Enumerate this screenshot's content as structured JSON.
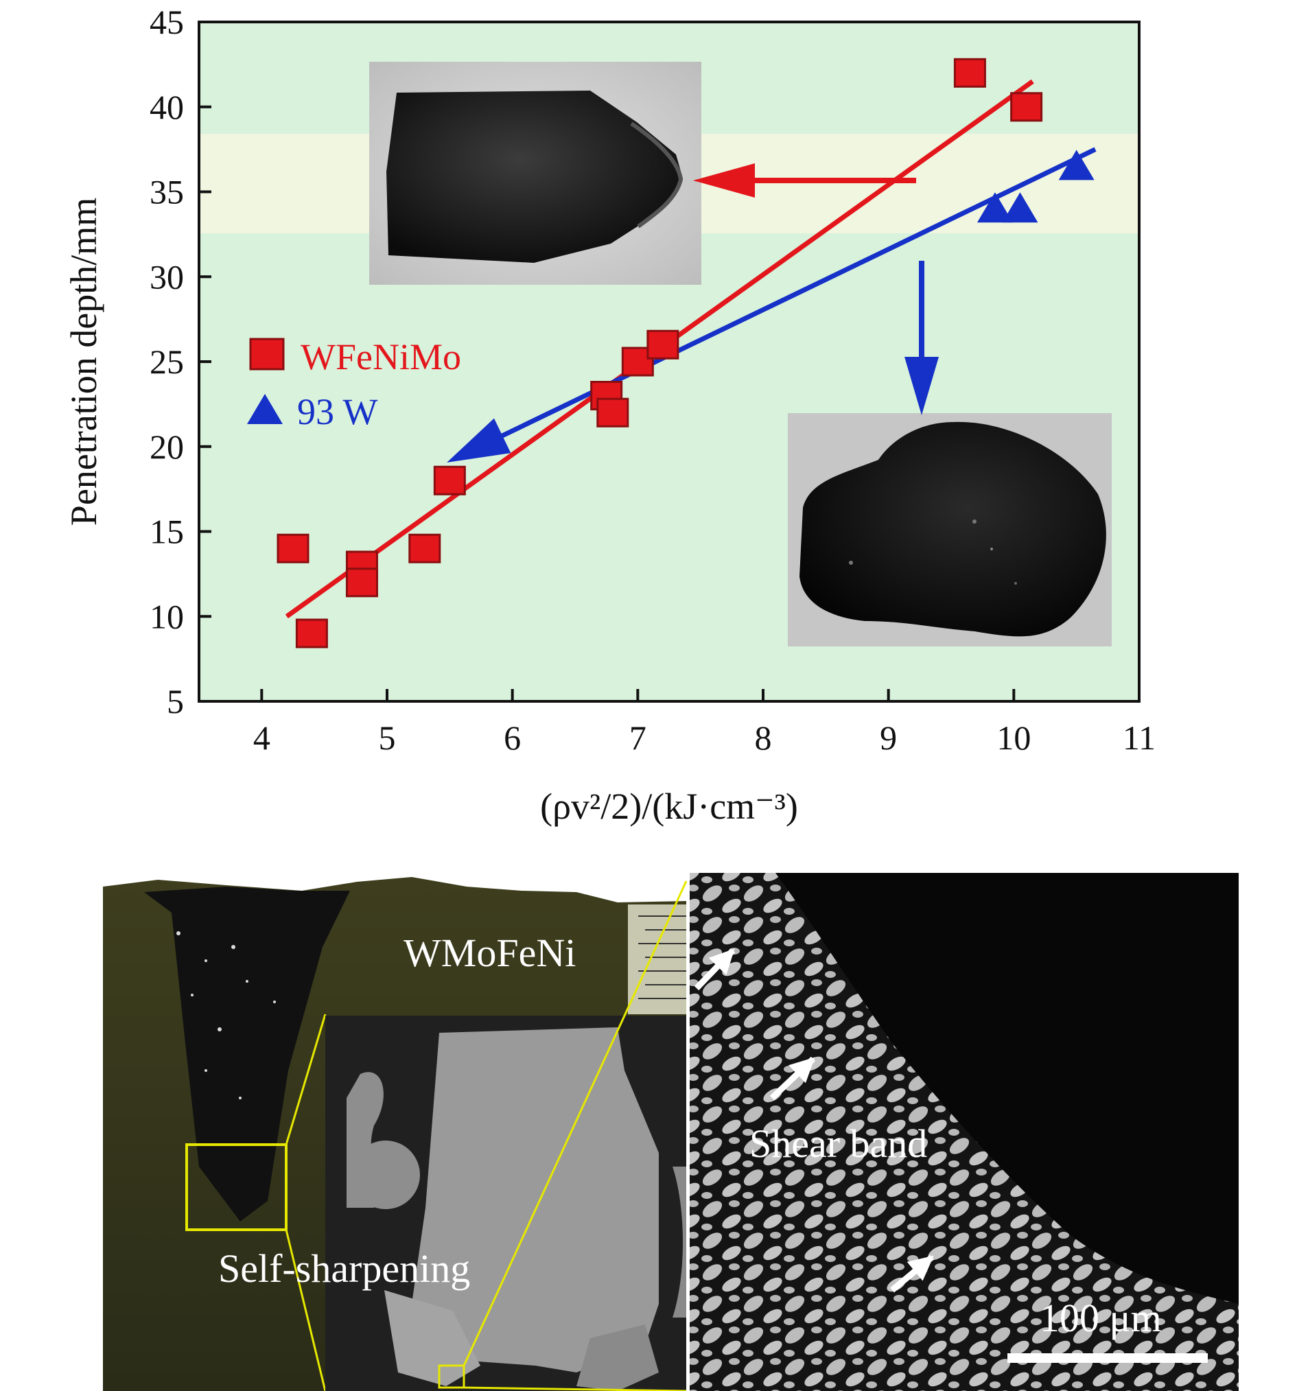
{
  "chart_data": {
    "type": "scatter",
    "title": "",
    "xlabel": "(ρv²/2)/(kJ·cm⁻³)",
    "ylabel": "Penetration depth/mm",
    "xlim": [
      3.5,
      11
    ],
    "ylim": [
      5,
      45
    ],
    "x_ticks": [
      4,
      5,
      6,
      7,
      8,
      9,
      10,
      11
    ],
    "y_ticks": [
      5,
      10,
      15,
      20,
      25,
      30,
      35,
      40,
      45
    ],
    "legend_position": "left-middle",
    "grid": false,
    "series": [
      {
        "name": "WFeNiMo",
        "marker": "square",
        "color": "#e3161c",
        "points": [
          [
            4.25,
            14
          ],
          [
            4.4,
            9
          ],
          [
            4.8,
            13
          ],
          [
            4.8,
            12
          ],
          [
            5.3,
            14
          ],
          [
            5.5,
            18
          ],
          [
            6.75,
            23
          ],
          [
            6.8,
            22
          ],
          [
            7.0,
            25
          ],
          [
            7.2,
            26
          ],
          [
            9.65,
            42
          ],
          [
            10.1,
            40
          ]
        ],
        "fit_line": [
          [
            4.2,
            10
          ],
          [
            10.15,
            41.5
          ]
        ]
      },
      {
        "name": "93 W",
        "marker": "triangle",
        "color": "#1531c8",
        "points": [
          [
            9.85,
            34
          ],
          [
            10.05,
            34
          ],
          [
            10.5,
            36.5
          ]
        ],
        "fit_line": [
          [
            5.6,
            19.5
          ],
          [
            10.65,
            37.5
          ]
        ]
      }
    ],
    "annotations": []
  },
  "micrographs": {
    "left_label_top": "WMoFeNi",
    "left_label_bottom": "Self-sharpening",
    "right_label": "Shear band",
    "scale_bar": "100 μm"
  },
  "colors": {
    "plot_background": "#d9f2dc",
    "plot_band": "#f3f7df",
    "highlight_box": "#e6e800"
  }
}
